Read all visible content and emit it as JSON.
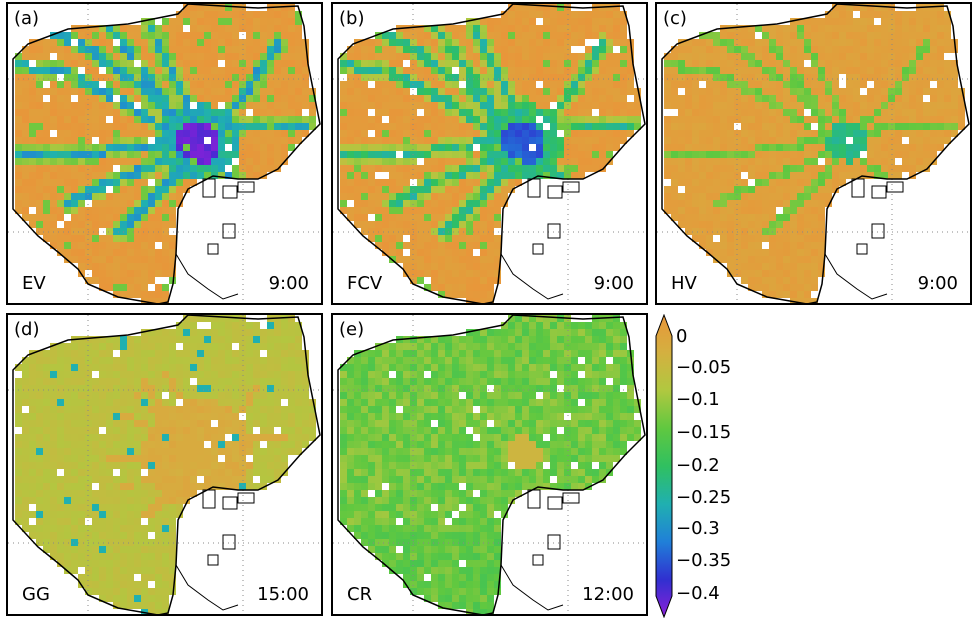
{
  "chart_data": {
    "type": "heatmap",
    "panels": [
      {
        "label": "(a)",
        "vehicle": "EV",
        "time": "9:00",
        "scheme": "ev"
      },
      {
        "label": "(b)",
        "vehicle": "FCV",
        "time": "9:00",
        "scheme": "fcv"
      },
      {
        "label": "(c)",
        "vehicle": "HV",
        "time": "9:00",
        "scheme": "hv"
      },
      {
        "label": "(d)",
        "vehicle": "GG",
        "time": "15:00",
        "scheme": "gg"
      },
      {
        "label": "(e)",
        "vehicle": "CR",
        "time": "12:00",
        "scheme": "cr"
      }
    ],
    "colorbar": {
      "ticks": [
        "0",
        "−0.05",
        "−0.1",
        "−0.15",
        "−0.2",
        "−0.25",
        "−0.3",
        "−0.35",
        "−0.4"
      ],
      "range": [
        -0.4,
        0
      ],
      "colors": [
        "#e8963a",
        "#d4b040",
        "#b0c840",
        "#60c840",
        "#30c060",
        "#20b0b0",
        "#2080d8",
        "#3030d0",
        "#8a20d8"
      ]
    }
  }
}
